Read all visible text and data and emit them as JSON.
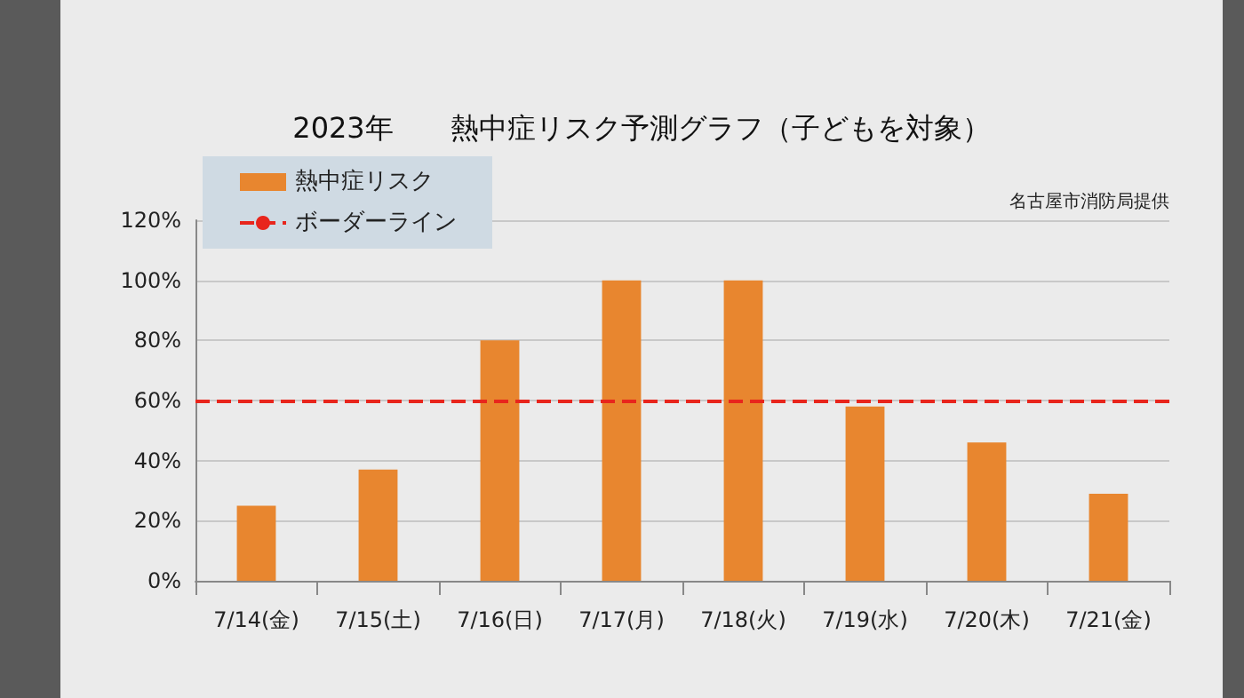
{
  "chart_data": {
    "type": "bar",
    "title": "2023年　　熱中症リスク予測グラフ（子どもを対象）",
    "annotations": [
      "名古屋市消防局提供"
    ],
    "categories": [
      "7/14(金)",
      "7/15(土)",
      "7/16(日)",
      "7/17(月)",
      "7/18(火)",
      "7/19(水)",
      "7/20(木)",
      "7/21(金)"
    ],
    "series": [
      {
        "name": "熱中症リスク",
        "color": "#e8862f",
        "values": [
          25,
          37,
          80,
          100,
          100,
          58,
          46,
          29
        ]
      }
    ],
    "ref_lines": [
      {
        "axis": "y",
        "value": 60,
        "label": "ボーダーライン",
        "color": "#e8251c",
        "line_style": "dashed"
      }
    ],
    "ylim": [
      0,
      120
    ],
    "yticks": [
      {
        "value": 0,
        "label": "0%"
      },
      {
        "value": 20,
        "label": "20%"
      },
      {
        "value": 40,
        "label": "40%"
      },
      {
        "value": 60,
        "label": "60%"
      },
      {
        "value": 80,
        "label": "80%"
      },
      {
        "value": 100,
        "label": "100%"
      },
      {
        "value": 120,
        "label": "120%"
      }
    ],
    "grid": "y",
    "legend": "top left"
  }
}
